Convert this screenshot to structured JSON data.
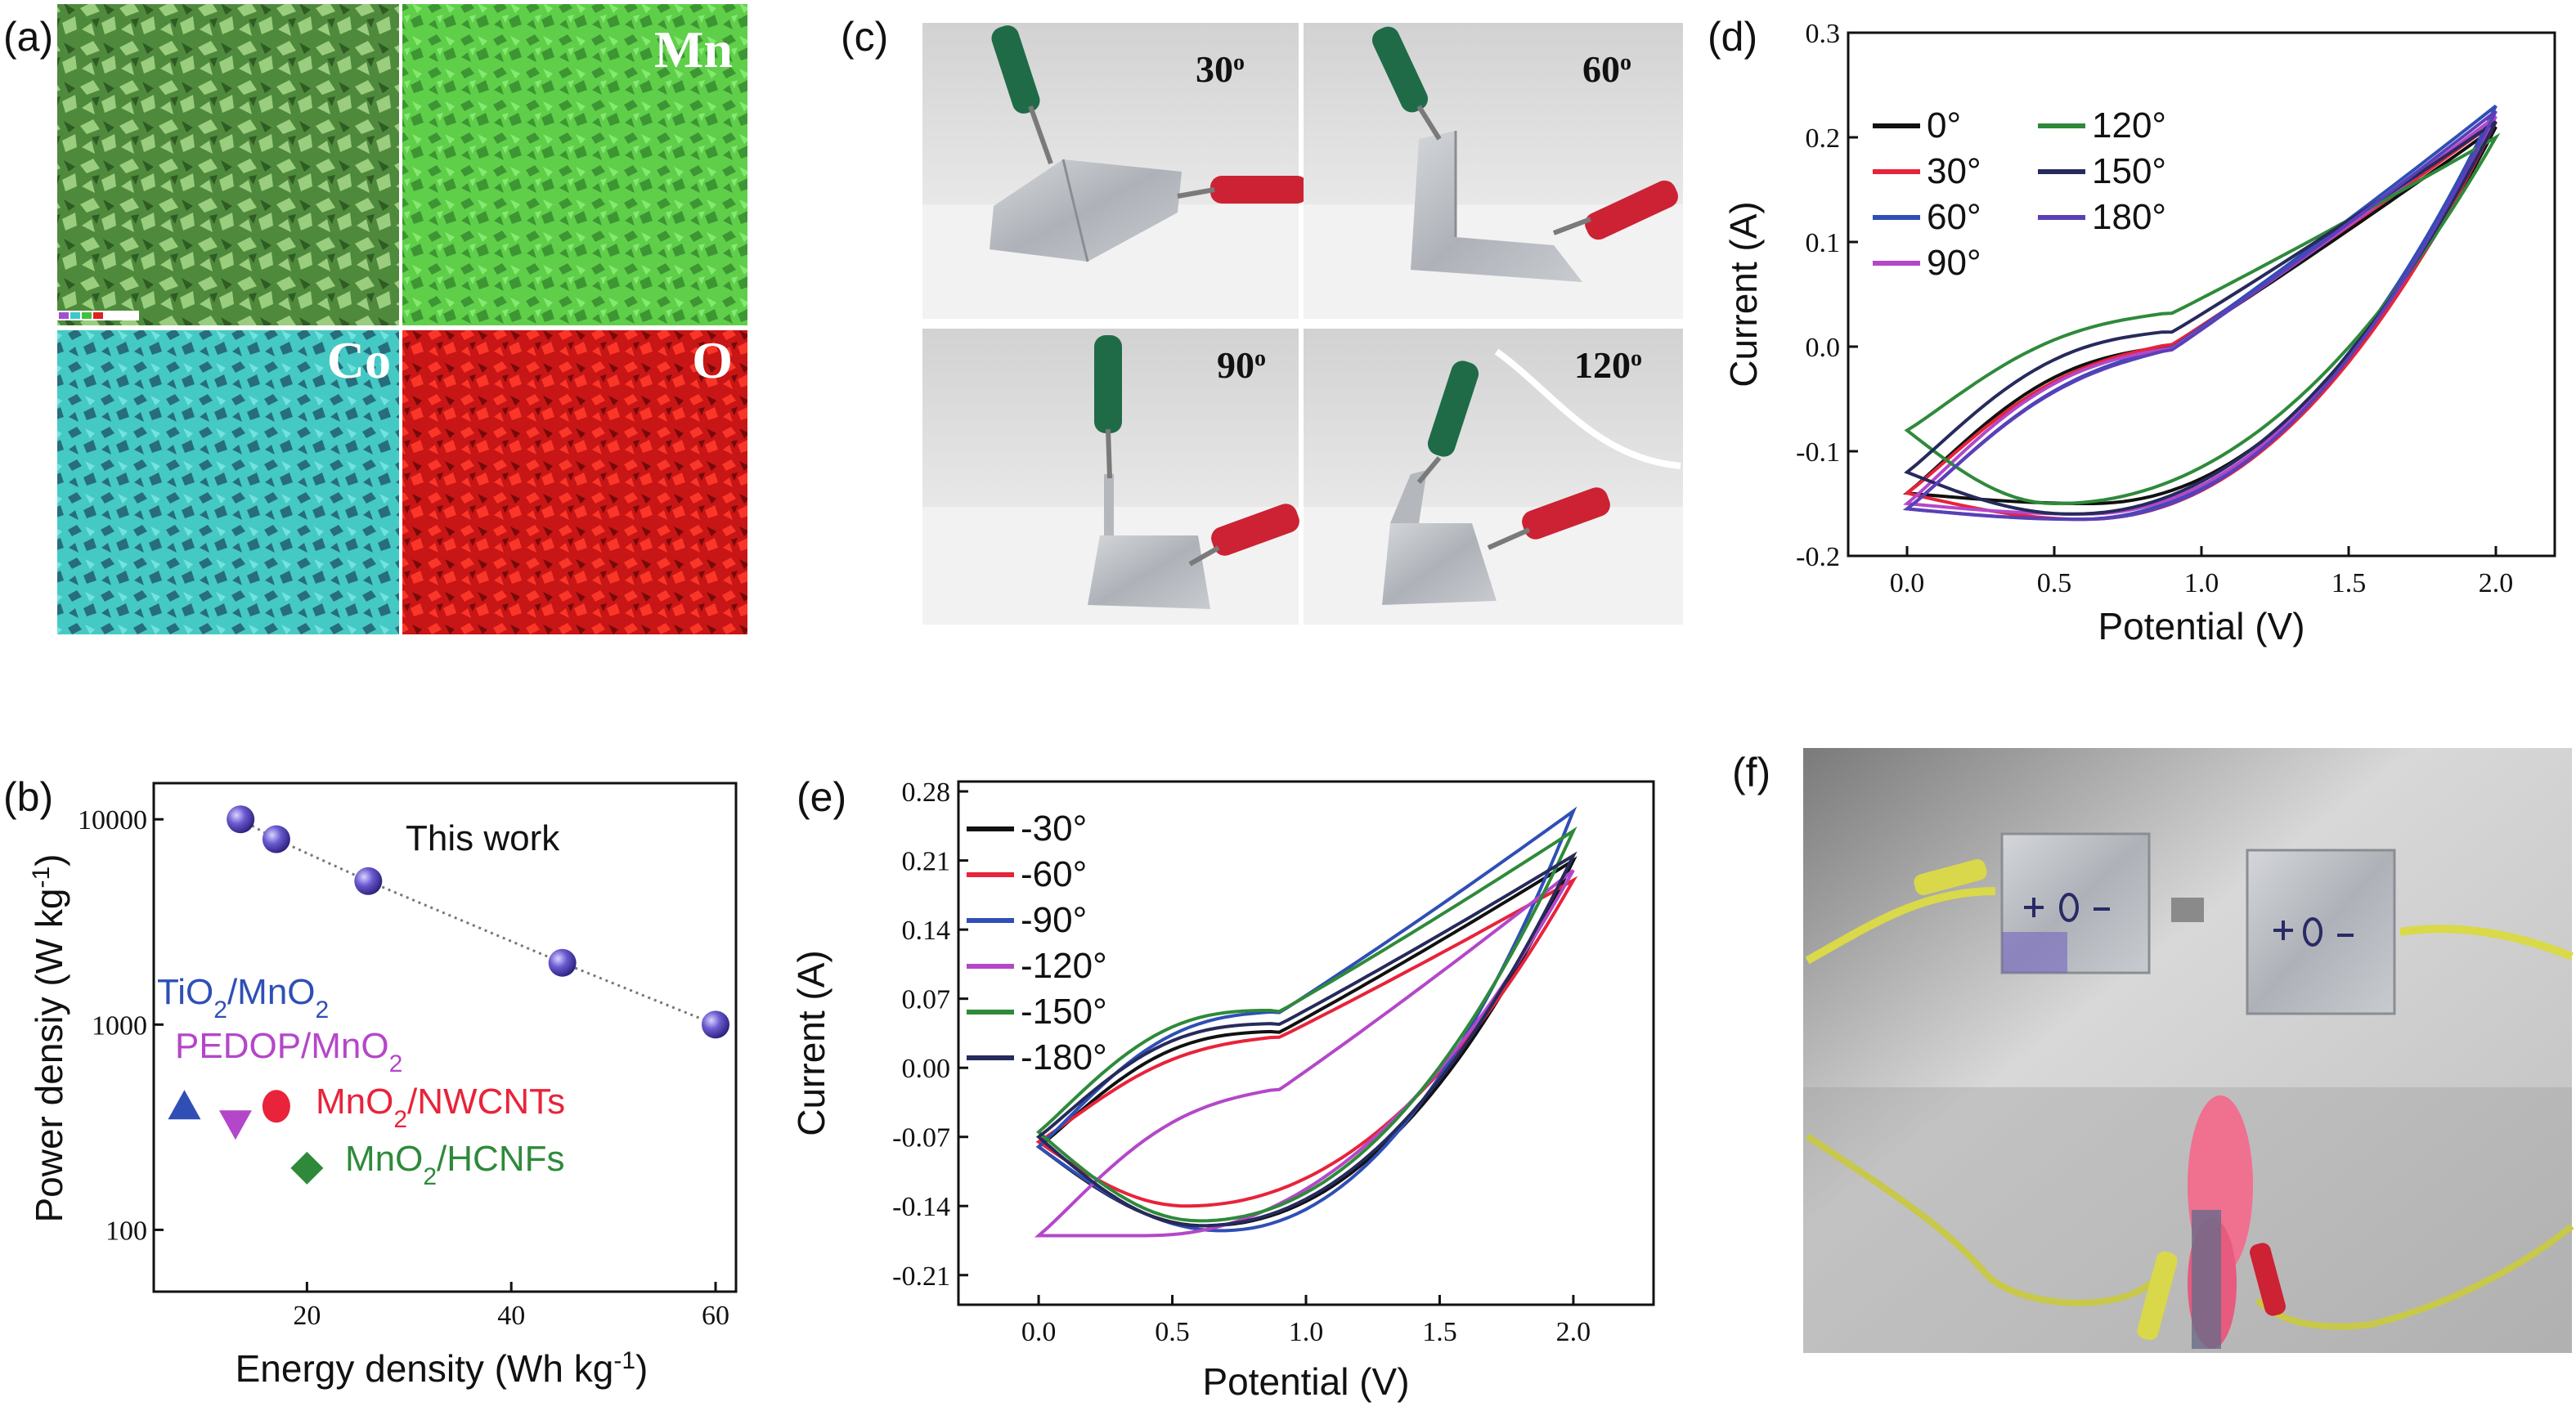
{
  "panel_labels": {
    "a": "(a)",
    "b": "(b)",
    "c": "(c)",
    "d": "(d)",
    "e": "(e)",
    "f": "(f)"
  },
  "panel_a": {
    "elements": [
      "Mn",
      "Co",
      "O"
    ]
  },
  "panel_c": {
    "angles": [
      "30",
      "60",
      "90",
      "120"
    ],
    "degree_mark": "o"
  },
  "colors": {
    "black": "#111111",
    "red": "#e8233a",
    "blue": "#2f4fb5",
    "magenta": "#b447c9",
    "green": "#2e8a3a",
    "navy": "#262a5c",
    "violet": "#5b3fb8",
    "sphere": "#6a5ad0"
  },
  "chart_data": [
    {
      "id": "d",
      "type": "line",
      "xlabel": "Potential (V)",
      "ylabel": "Current (A)",
      "xlim": [
        -0.2,
        2.2
      ],
      "ylim": [
        -0.2,
        0.3
      ],
      "xticks": [
        "0.0",
        "0.5",
        "1.0",
        "1.5",
        "2.0"
      ],
      "yticks": [
        "-0.2",
        "-0.1",
        "0.0",
        "0.1",
        "0.2",
        "0.3"
      ],
      "series": [
        {
          "name": "0°",
          "color": "#111111",
          "min_i": -0.15,
          "max_i": 0.21,
          "start_i": -0.14,
          "peak_v": 0.62,
          "kink": 0.0
        },
        {
          "name": "30°",
          "color": "#e8233a",
          "min_i": -0.165,
          "max_i": 0.215,
          "start_i": -0.14,
          "peak_v": 0.6,
          "kink": -0.005
        },
        {
          "name": "60°",
          "color": "#2f4fb5",
          "min_i": -0.165,
          "max_i": 0.23,
          "start_i": -0.155,
          "peak_v": 0.58,
          "kink": -0.005
        },
        {
          "name": "90°",
          "color": "#b447c9",
          "min_i": -0.16,
          "max_i": 0.22,
          "start_i": -0.15,
          "peak_v": 0.6,
          "kink": 0.0
        },
        {
          "name": "120°",
          "color": "#2e8a3a",
          "min_i": -0.15,
          "max_i": 0.2,
          "start_i": -0.08,
          "peak_v": 0.5,
          "kink": -0.01
        },
        {
          "name": "150°",
          "color": "#262a5c",
          "min_i": -0.16,
          "max_i": 0.215,
          "start_i": -0.12,
          "peak_v": 0.56,
          "kink": 0.0
        },
        {
          "name": "180°",
          "color": "#5b3fb8",
          "min_i": -0.165,
          "max_i": 0.225,
          "start_i": -0.155,
          "peak_v": 0.6,
          "kink": -0.005
        }
      ]
    },
    {
      "id": "e",
      "type": "line",
      "xlabel": "Potential (V)",
      "ylabel": "Current (A)",
      "xlim": [
        -0.3,
        2.3
      ],
      "ylim": [
        -0.24,
        0.29
      ],
      "xticks": [
        "0.0",
        "0.5",
        "1.0",
        "1.5",
        "2.0"
      ],
      "yticks": [
        "0.28",
        "0.21",
        "0.14",
        "0.07",
        "0.00",
        "-0.07",
        "-0.14",
        "-0.21"
      ],
      "series": [
        {
          "name": "-30°",
          "color": "#111111",
          "min_i": -0.16,
          "max_i": 0.21,
          "start_i": -0.08,
          "peak_v": 0.62,
          "kink": 0.0
        },
        {
          "name": "-60°",
          "color": "#e8233a",
          "min_i": -0.14,
          "max_i": 0.19,
          "start_i": -0.075,
          "peak_v": 0.55,
          "kink": -0.01
        },
        {
          "name": "-90°",
          "color": "#2f4fb5",
          "min_i": -0.165,
          "max_i": 0.26,
          "start_i": -0.08,
          "peak_v": 0.68,
          "kink": 0.005
        },
        {
          "name": "-120°",
          "color": "#b447c9",
          "min_i": -0.17,
          "max_i": 0.2,
          "start_i": -0.17,
          "peak_v": 0.4,
          "kink": 0.0
        },
        {
          "name": "-150°",
          "color": "#2e8a3a",
          "min_i": -0.155,
          "max_i": 0.24,
          "start_i": -0.065,
          "peak_v": 0.6,
          "kink": 0.005
        },
        {
          "name": "-180°",
          "color": "#262a5c",
          "min_i": -0.16,
          "max_i": 0.215,
          "start_i": -0.07,
          "peak_v": 0.6,
          "kink": 0.0
        }
      ]
    },
    {
      "id": "b",
      "type": "scatter",
      "xlabel_main": "Energy density (Wh kg",
      "xlabel_sup": "-1",
      "xlabel_close": ")",
      "ylabel_main": "Power densiy (W kg",
      "ylabel_sup": "-1",
      "ylabel_close": ")",
      "xscale": "linear",
      "yscale": "log",
      "xlim": [
        5,
        62
      ],
      "ylim": [
        50,
        15000
      ],
      "xticks": [
        "20",
        "40",
        "60"
      ],
      "yticks": [
        "10000",
        "1000",
        "100"
      ],
      "this_work_label": "This work",
      "this_work": [
        {
          "x": 13.5,
          "y": 10000
        },
        {
          "x": 17,
          "y": 8000
        },
        {
          "x": 26,
          "y": 5000
        },
        {
          "x": 45,
          "y": 2000
        },
        {
          "x": 60,
          "y": 1000
        }
      ],
      "comparisons": [
        {
          "label": "TiO2/MnO2",
          "parts": [
            "TiO",
            "2",
            "/MnO",
            "2"
          ],
          "marker": "triangle-up",
          "color": "#2f4fb5",
          "x": 8,
          "y": 400
        },
        {
          "label": "PEDOP/MnO2",
          "parts": [
            "PEDOP/MnO",
            "2",
            "",
            ""
          ],
          "marker": "triangle-down",
          "color": "#b447c9",
          "x": 13,
          "y": 330
        },
        {
          "label": "MnO2/NWCNTs",
          "parts": [
            "MnO",
            "2",
            "/NWCNTs",
            ""
          ],
          "marker": "circle",
          "color": "#e8233a",
          "x": 17,
          "y": 400
        },
        {
          "label": "MnO2/HCNFs",
          "parts": [
            "MnO",
            "2",
            "/HCNFs",
            ""
          ],
          "marker": "diamond",
          "color": "#2e8a3a",
          "x": 20,
          "y": 200
        }
      ]
    }
  ]
}
